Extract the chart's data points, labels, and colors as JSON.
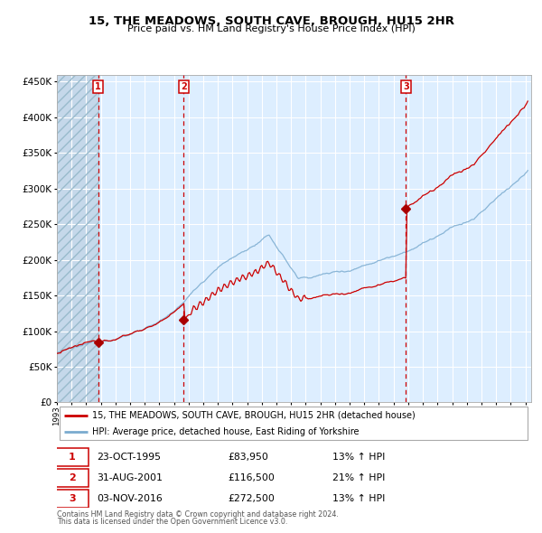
{
  "title1": "15, THE MEADOWS, SOUTH CAVE, BROUGH, HU15 2HR",
  "title2": "Price paid vs. HM Land Registry's House Price Index (HPI)",
  "legend1": "15, THE MEADOWS, SOUTH CAVE, BROUGH, HU15 2HR (detached house)",
  "legend2": "HPI: Average price, detached house, East Riding of Yorkshire",
  "sale_line_color": "#cc0000",
  "hpi_line_color": "#7aabcf",
  "vline_color": "#cc0000",
  "plot_bg": "#ddeeff",
  "ylim": [
    0,
    460000
  ],
  "yticks": [
    0,
    50000,
    100000,
    150000,
    200000,
    250000,
    300000,
    350000,
    400000,
    450000
  ],
  "transactions": [
    {
      "label": "1",
      "date_num": 1995.82,
      "price": 83950,
      "date_str": "23-OCT-1995",
      "price_str": "£83,950",
      "hpi_str": "13% ↑ HPI"
    },
    {
      "label": "2",
      "date_num": 2001.66,
      "price": 116500,
      "date_str": "31-AUG-2001",
      "price_str": "£116,500",
      "hpi_str": "21% ↑ HPI"
    },
    {
      "label": "3",
      "date_num": 2016.84,
      "price": 272500,
      "date_str": "03-NOV-2016",
      "price_str": "£272,500",
      "hpi_str": "13% ↑ HPI"
    }
  ],
  "footnote1": "Contains HM Land Registry data © Crown copyright and database right 2024.",
  "footnote2": "This data is licensed under the Open Government Licence v3.0."
}
